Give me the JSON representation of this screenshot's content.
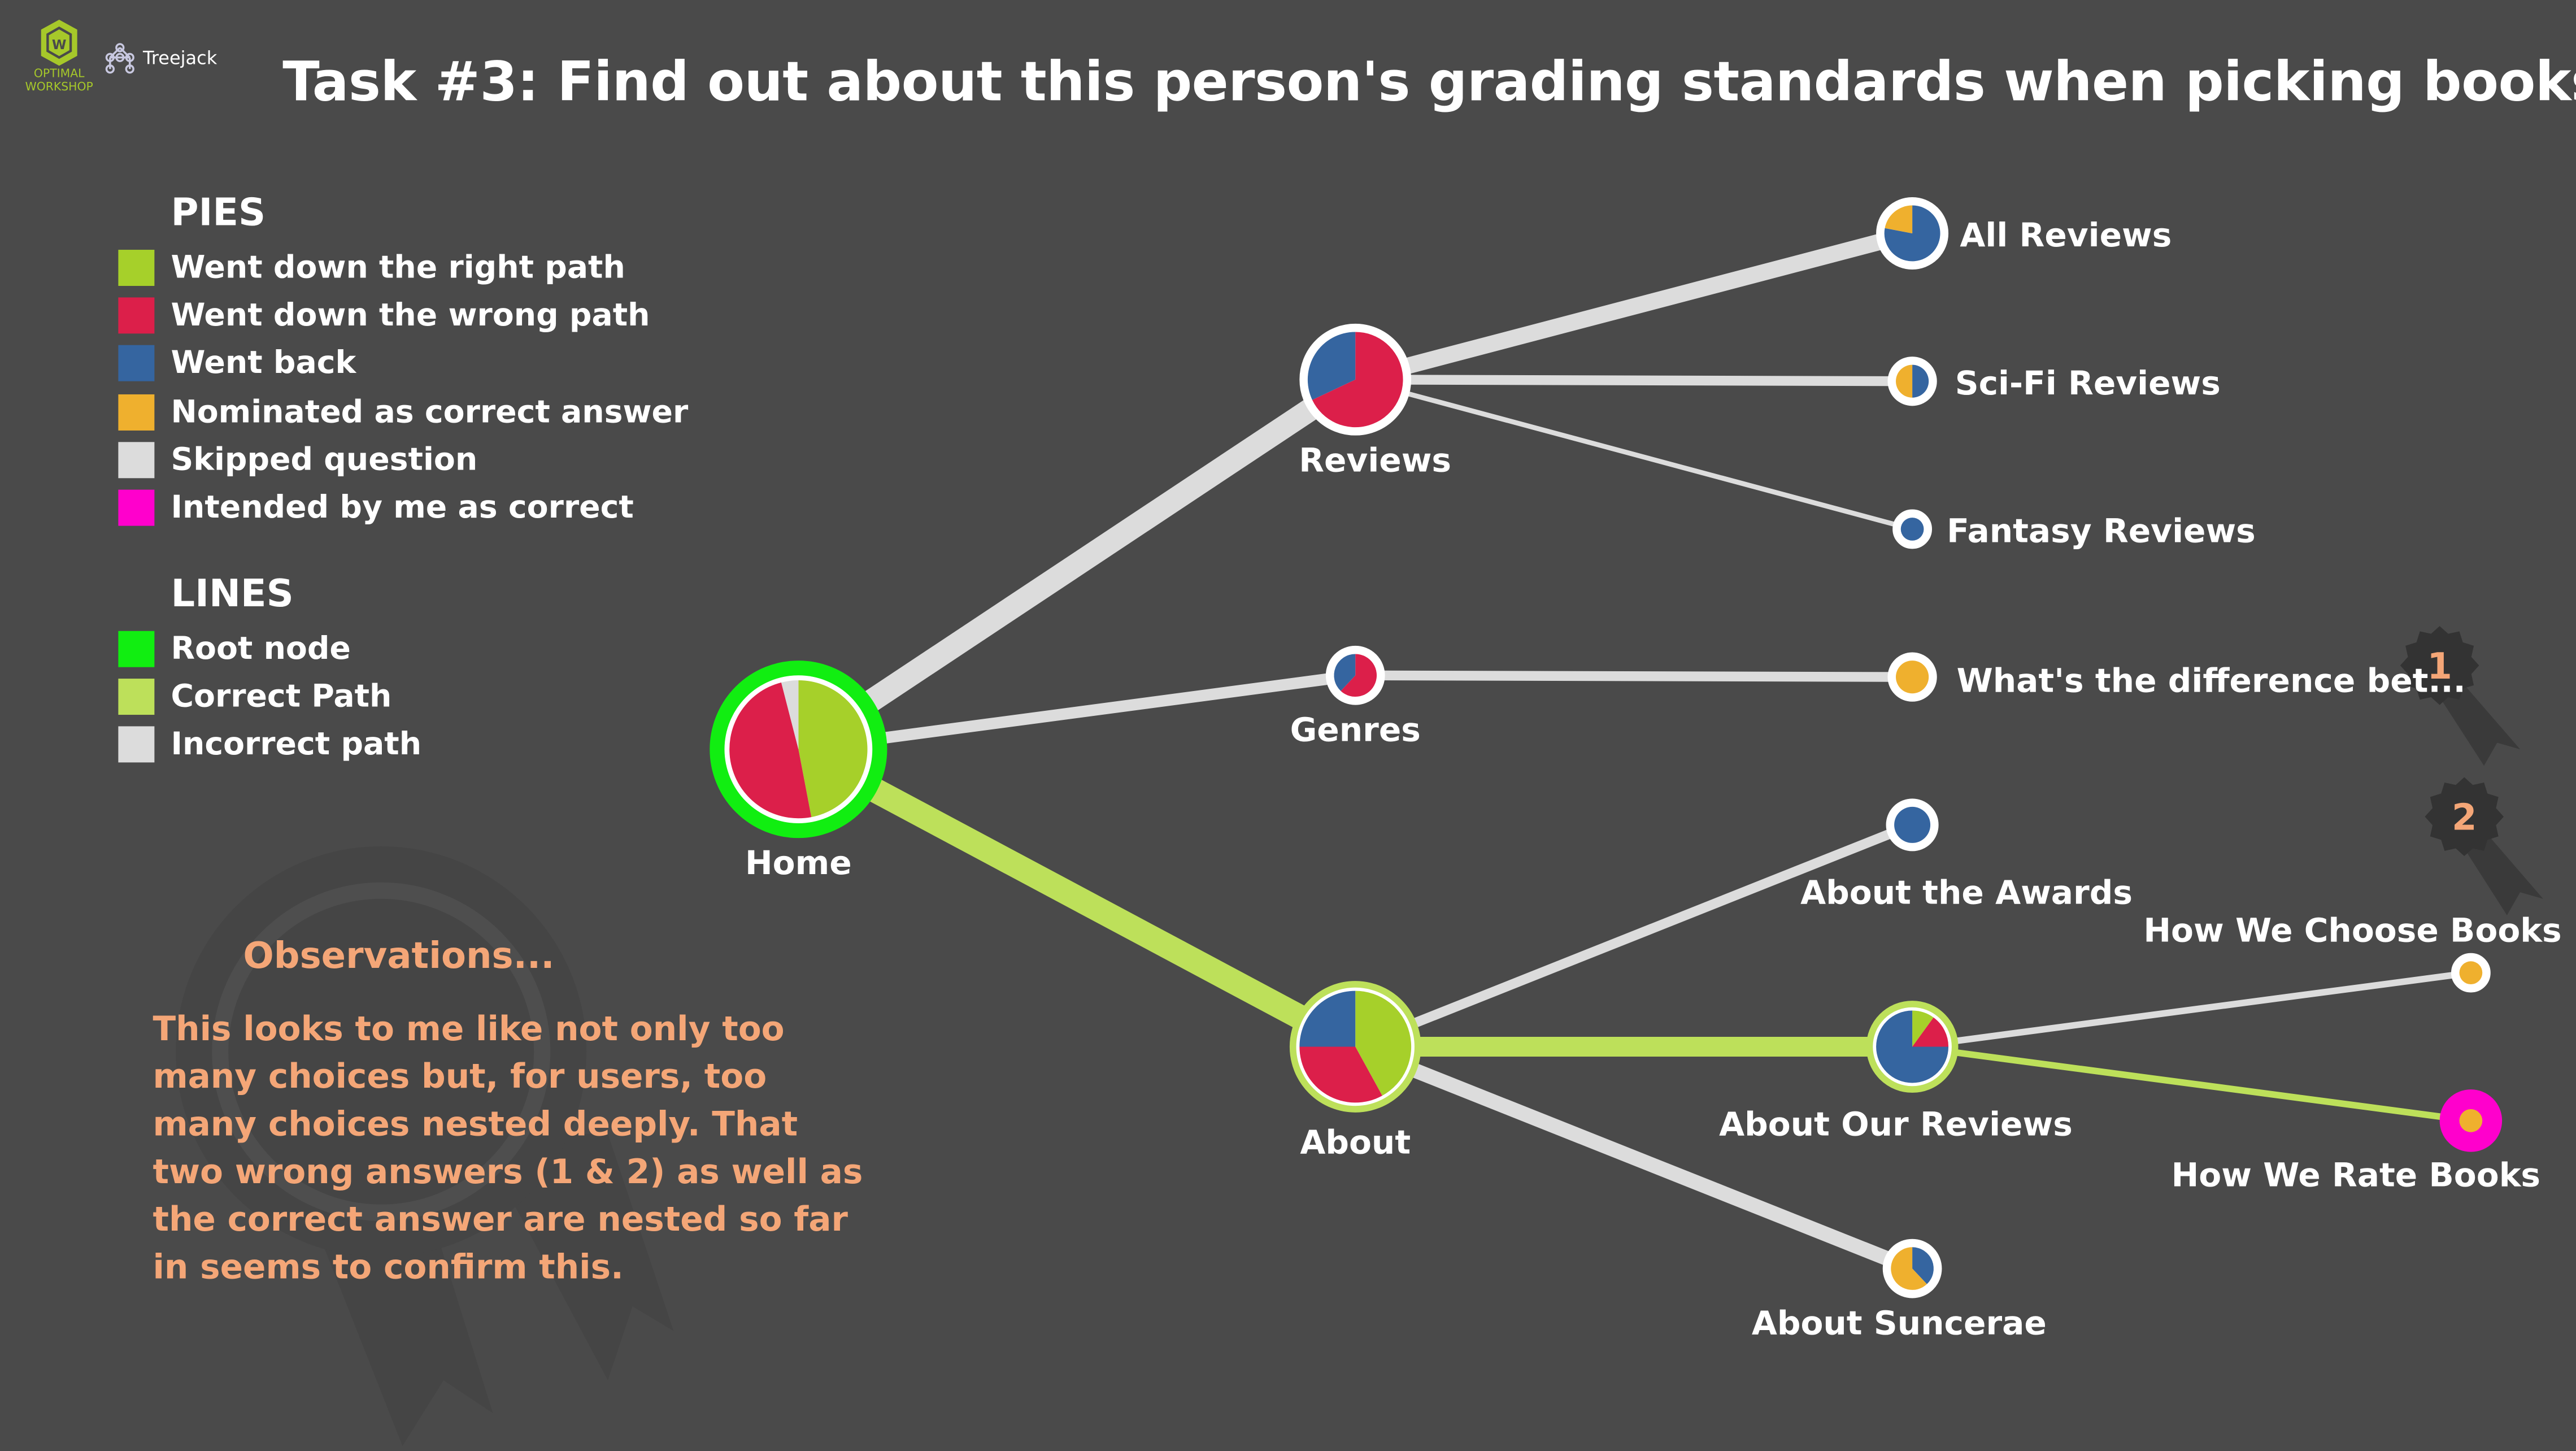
{
  "app": {
    "brand": "OPTIMAL WORKSHOP",
    "product": "Treejack"
  },
  "title": "Task #3: Find out about this person's grading standards when picking books.",
  "legend": {
    "pies_heading": "PIES",
    "pies": [
      {
        "label": "Went down the right path",
        "color": "#a6d02a"
      },
      {
        "label": "Went down the wrong path",
        "color": "#dc1f4a"
      },
      {
        "label": "Went back",
        "color": "#3565a0"
      },
      {
        "label": "Nominated as correct answer",
        "color": "#efb02e"
      },
      {
        "label": "Skipped question",
        "color": "#dcdcdc"
      },
      {
        "label": "Intended by me as correct",
        "color": "#ff00cc"
      }
    ],
    "lines_heading": "LINES",
    "lines": [
      {
        "label": "Root node",
        "color": "#11ee11"
      },
      {
        "label": "Correct Path",
        "color": "#bde05a"
      },
      {
        "label": "Incorrect path",
        "color": "#dcdcdc"
      }
    ]
  },
  "observations": {
    "title": "Observations...",
    "body": "This looks to me like not only too many choices but, for users, too many choices nested deeply. That two wrong answers (1 & 2) as well as the correct answer are nested so far in seems to confirm this."
  },
  "colors": {
    "background": "#4a4a4a",
    "right": "#a6d02a",
    "wrong": "#dc1f4a",
    "back": "#3565a0",
    "nominated": "#efb02e",
    "skipped": "#dcdcdc",
    "intended": "#ff00cc",
    "root": "#11ee11",
    "correct_line": "#bde05a",
    "incorrect_line": "#dcdcdc",
    "annotation": "#f4a677"
  },
  "tree": {
    "nodes": [
      {
        "id": "home",
        "label": "Home",
        "root": true,
        "pie": {
          "right": 0.47,
          "wrong": 0.49,
          "skipped": 0.04
        }
      },
      {
        "id": "reviews",
        "label": "Reviews",
        "pie": {
          "wrong": 0.68,
          "back": 0.32
        }
      },
      {
        "id": "genres",
        "label": "Genres",
        "pie": {
          "wrong": 0.62,
          "back": 0.38
        }
      },
      {
        "id": "about",
        "label": "About",
        "correct_path": true,
        "pie": {
          "right": 0.42,
          "wrong": 0.33,
          "back": 0.25
        }
      },
      {
        "id": "all_reviews",
        "label": "All Reviews",
        "pie": {
          "back": 0.78,
          "nominated": 0.22
        }
      },
      {
        "id": "scifi_reviews",
        "label": "Sci-Fi Reviews",
        "pie": {
          "back": 0.5,
          "nominated": 0.5
        }
      },
      {
        "id": "fantasy_reviews",
        "label": "Fantasy Reviews",
        "pie": {
          "back": 1.0
        }
      },
      {
        "id": "difference",
        "label": "What's the difference bet...",
        "badge": "1",
        "pie": {
          "nominated": 1.0
        }
      },
      {
        "id": "about_awards",
        "label": "About the Awards",
        "pie": {
          "back": 1.0
        }
      },
      {
        "id": "about_reviews",
        "label": "About Our Reviews",
        "correct_path": true,
        "pie": {
          "right": 0.1,
          "wrong": 0.15,
          "back": 0.75
        }
      },
      {
        "id": "about_suncerae",
        "label": "About Suncerae",
        "pie": {
          "nominated": 0.62,
          "back": 0.38
        }
      },
      {
        "id": "choose_books",
        "label": "How We Choose Books",
        "badge": "2",
        "pie": {
          "nominated": 1.0
        }
      },
      {
        "id": "rate_books",
        "label": "How We Rate Books",
        "intended": true,
        "correct_path": true,
        "pie": {
          "nominated": 1.0
        }
      }
    ],
    "edges": [
      {
        "from": "home",
        "to": "reviews",
        "type": "incorrect"
      },
      {
        "from": "home",
        "to": "genres",
        "type": "incorrect"
      },
      {
        "from": "home",
        "to": "about",
        "type": "correct"
      },
      {
        "from": "reviews",
        "to": "all_reviews",
        "type": "incorrect"
      },
      {
        "from": "reviews",
        "to": "scifi_reviews",
        "type": "incorrect"
      },
      {
        "from": "reviews",
        "to": "fantasy_reviews",
        "type": "incorrect"
      },
      {
        "from": "genres",
        "to": "difference",
        "type": "incorrect"
      },
      {
        "from": "about",
        "to": "about_awards",
        "type": "incorrect"
      },
      {
        "from": "about",
        "to": "about_reviews",
        "type": "correct"
      },
      {
        "from": "about",
        "to": "about_suncerae",
        "type": "incorrect"
      },
      {
        "from": "about_reviews",
        "to": "choose_books",
        "type": "incorrect"
      },
      {
        "from": "about_reviews",
        "to": "rate_books",
        "type": "correct"
      }
    ]
  }
}
